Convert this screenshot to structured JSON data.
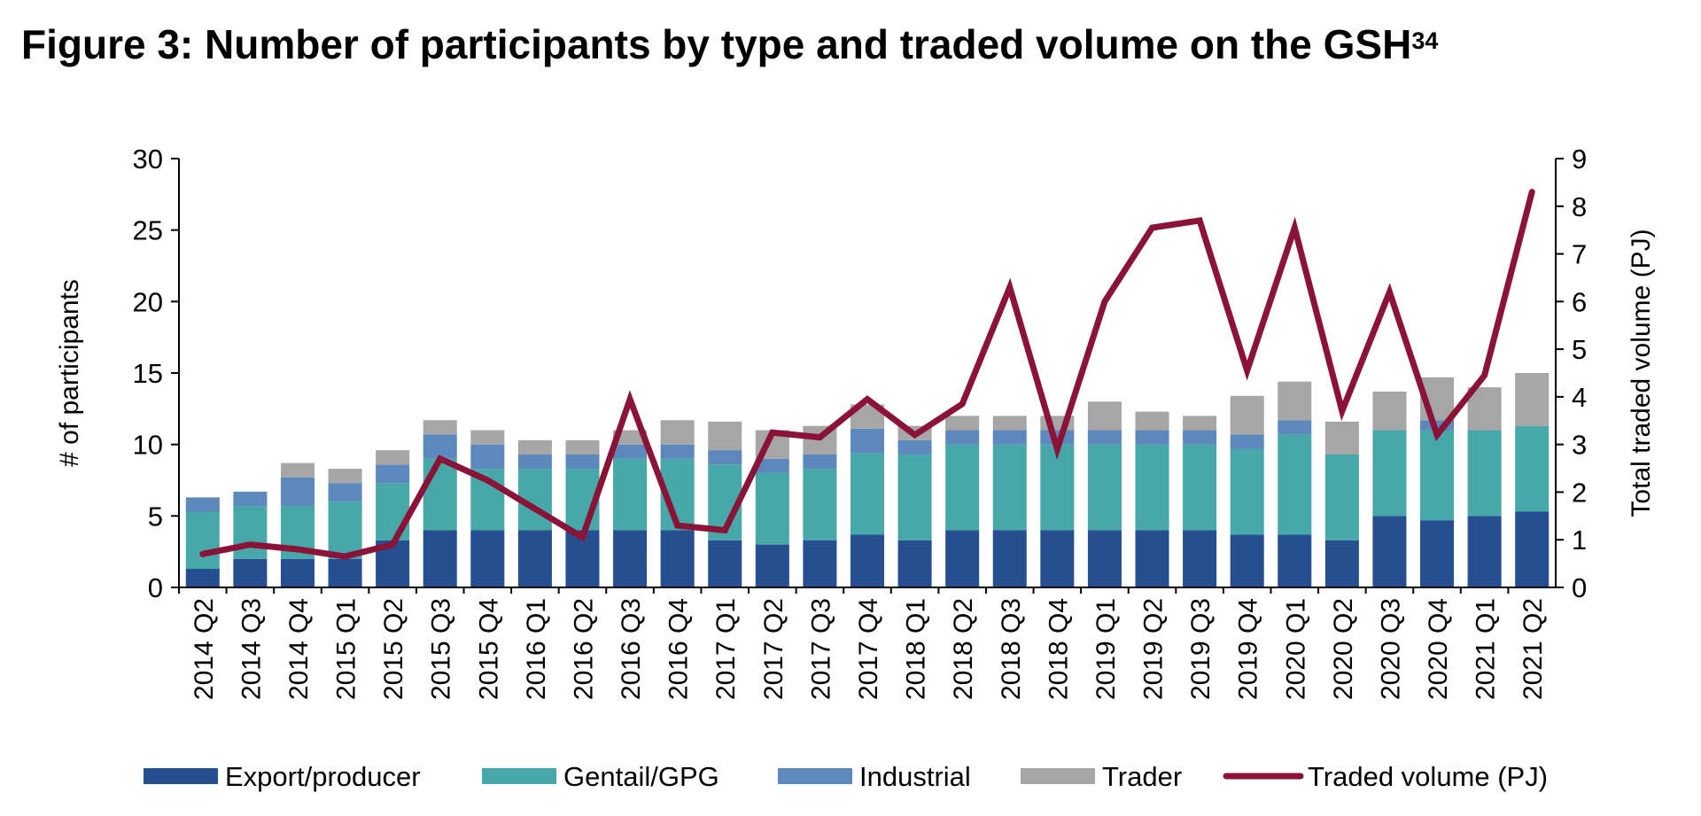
{
  "chart_data": {
    "type": "bar",
    "title": "Figure 3: Number of participants by type and traded volume on the GSH",
    "title_superscript": "34",
    "ylabel": "# of participants",
    "y2label": "Total traded volume (PJ)",
    "ylim": [
      0,
      30
    ],
    "y2lim": [
      0,
      9
    ],
    "yticks": [
      0,
      5,
      10,
      15,
      20,
      25,
      30
    ],
    "y2ticks": [
      0,
      1,
      2,
      3,
      4,
      5,
      6,
      7,
      8,
      9
    ],
    "stacked": true,
    "legend_position": "bottom",
    "categories": [
      "2014 Q2",
      "2014 Q3",
      "2014 Q4",
      "2015 Q1",
      "2015 Q2",
      "2015 Q3",
      "2015 Q4",
      "2016 Q1",
      "2016 Q2",
      "2016 Q3",
      "2016 Q4",
      "2017 Q1",
      "2017 Q2",
      "2017 Q3",
      "2017 Q4",
      "2018 Q1",
      "2018 Q2",
      "2018 Q3",
      "2018 Q4",
      "2019 Q1",
      "2019 Q2",
      "2019 Q3",
      "2019 Q4",
      "2020 Q1",
      "2020 Q2",
      "2020 Q3",
      "2020 Q4",
      "2021 Q1",
      "2021 Q2"
    ],
    "series": [
      {
        "name": "Export/producer",
        "color": "#254f91",
        "values": [
          1.3,
          2,
          2,
          2,
          3.3,
          4,
          4,
          4,
          4,
          4,
          4,
          3.3,
          3,
          3.3,
          3.7,
          3.3,
          4,
          4,
          4,
          4,
          4,
          4,
          3.7,
          3.7,
          3.3,
          5,
          4.7,
          5,
          5.3
        ]
      },
      {
        "name": "Gentail/GPG",
        "color": "#48a8a9",
        "values": [
          4,
          3.7,
          3.7,
          4,
          4,
          5,
          4.3,
          4.3,
          4.3,
          5,
          5,
          5.3,
          5,
          5,
          5.7,
          6,
          6,
          6,
          6,
          6,
          6,
          6,
          6,
          7,
          6,
          6,
          6.3,
          6,
          6
        ]
      },
      {
        "name": "Industrial",
        "color": "#5d88bb",
        "values": [
          1,
          1,
          2,
          1.3,
          1.3,
          1.7,
          1.7,
          1,
          1,
          1,
          1,
          1,
          1,
          1,
          1.7,
          1,
          1,
          1,
          1,
          1,
          1,
          1,
          1,
          1,
          0,
          0,
          0.7,
          0,
          0
        ]
      },
      {
        "name": "Trader",
        "color": "#a6a6a6",
        "values": [
          0,
          0,
          1,
          1,
          1,
          1,
          1,
          1,
          1,
          1,
          1.7,
          2,
          2,
          2,
          1.7,
          1,
          1,
          1,
          1,
          2,
          1.3,
          1,
          2.7,
          2.7,
          2.3,
          2.7,
          3,
          3,
          3.7
        ]
      }
    ],
    "line_series": {
      "name": "Traded volume (PJ)",
      "color": "#8b1338",
      "axis": "right",
      "values": [
        0.7,
        0.9,
        0.8,
        0.65,
        0.9,
        2.7,
        2.25,
        1.65,
        1.05,
        3.95,
        1.3,
        1.2,
        3.25,
        3.15,
        3.95,
        3.2,
        3.85,
        6.3,
        2.9,
        6.0,
        7.55,
        7.7,
        4.55,
        7.55,
        3.7,
        6.2,
        3.2,
        4.45,
        8.3
      ]
    }
  }
}
